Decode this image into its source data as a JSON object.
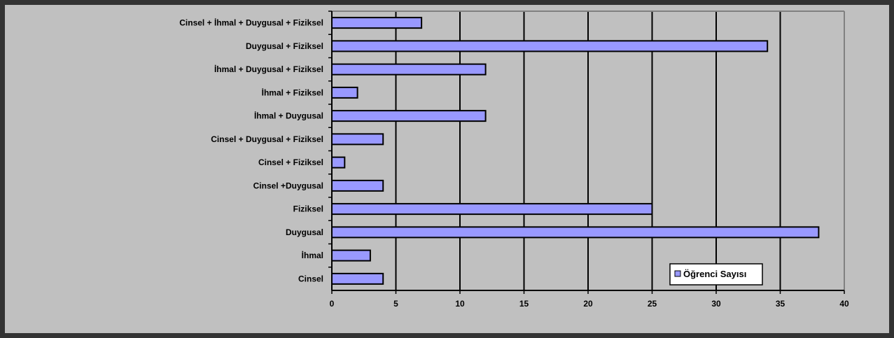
{
  "chart_data": {
    "type": "bar",
    "orientation": "horizontal",
    "categories": [
      "Cinsel",
      "İhmal",
      "Duygusal",
      "Fiziksel",
      "Cinsel +Duygusal",
      "Cinsel + Fiziksel",
      "Cinsel + Duygusal + Fiziksel",
      "İhmal + Duygusal",
      "İhmal + Fiziksel",
      "İhmal + Duygusal + Fiziksel",
      "Duygusal + Fiziksel",
      "Cinsel + İhmal + Duygusal + Fiziksel"
    ],
    "series": [
      {
        "name": "Öğrenci Sayısı",
        "color": "#9999ff",
        "values": [
          4,
          3,
          38,
          25,
          4,
          1,
          4,
          12,
          2,
          12,
          34,
          7
        ]
      }
    ],
    "xlim": [
      0,
      40
    ],
    "xticks": [
      "0",
      "5",
      "10",
      "15",
      "20",
      "25",
      "30",
      "35",
      "40"
    ],
    "grid": "vertical",
    "legend_position": "bottom-right",
    "colors": {
      "background": "#c0c0c0",
      "frame_border": "#333333",
      "bar_fill": "#9999ff",
      "bar_stroke": "#000000",
      "gridline": "#000000"
    }
  }
}
